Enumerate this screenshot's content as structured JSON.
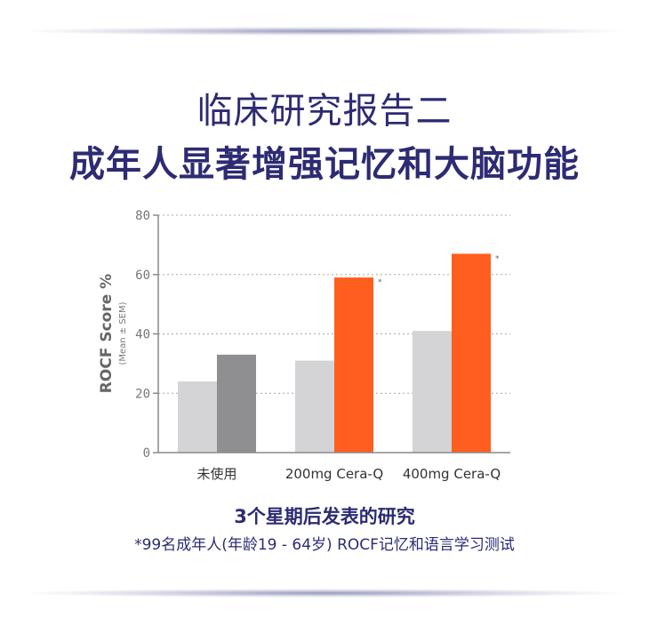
{
  "heading": {
    "line1": "临床研究报告二",
    "line2": "成年人显著增强记忆和大脑功能"
  },
  "chart_data": {
    "type": "bar",
    "categories": [
      "未使用",
      "200mg Cera-Q",
      "400mg Cera-Q"
    ],
    "series": [
      {
        "values": [
          24,
          31,
          41
        ],
        "color": "#d4d4d6"
      },
      {
        "values": [
          33,
          59,
          67
        ],
        "colors": [
          "#8f8f92",
          "#ff5e1f",
          "#ff5e1f"
        ]
      }
    ],
    "significance_markers": [
      "",
      "*",
      "*"
    ],
    "ylabel": "ROCF Score %",
    "ylabel_sub": "(Mean ± SEM)",
    "ylim": [
      0,
      80
    ],
    "yticks": [
      0,
      20,
      40,
      60,
      80
    ],
    "grid": true
  },
  "caption": {
    "main": "3个星期后发表的研究",
    "note": "*99名成年人(年龄19 - 64岁) ROCF记忆和语言学习测试"
  },
  "colors": {
    "navy": "#2d2b73",
    "orange": "#ff5e1f",
    "light_gray": "#d4d4d6",
    "dark_gray": "#8f8f92",
    "axis": "#8a8a8a"
  }
}
